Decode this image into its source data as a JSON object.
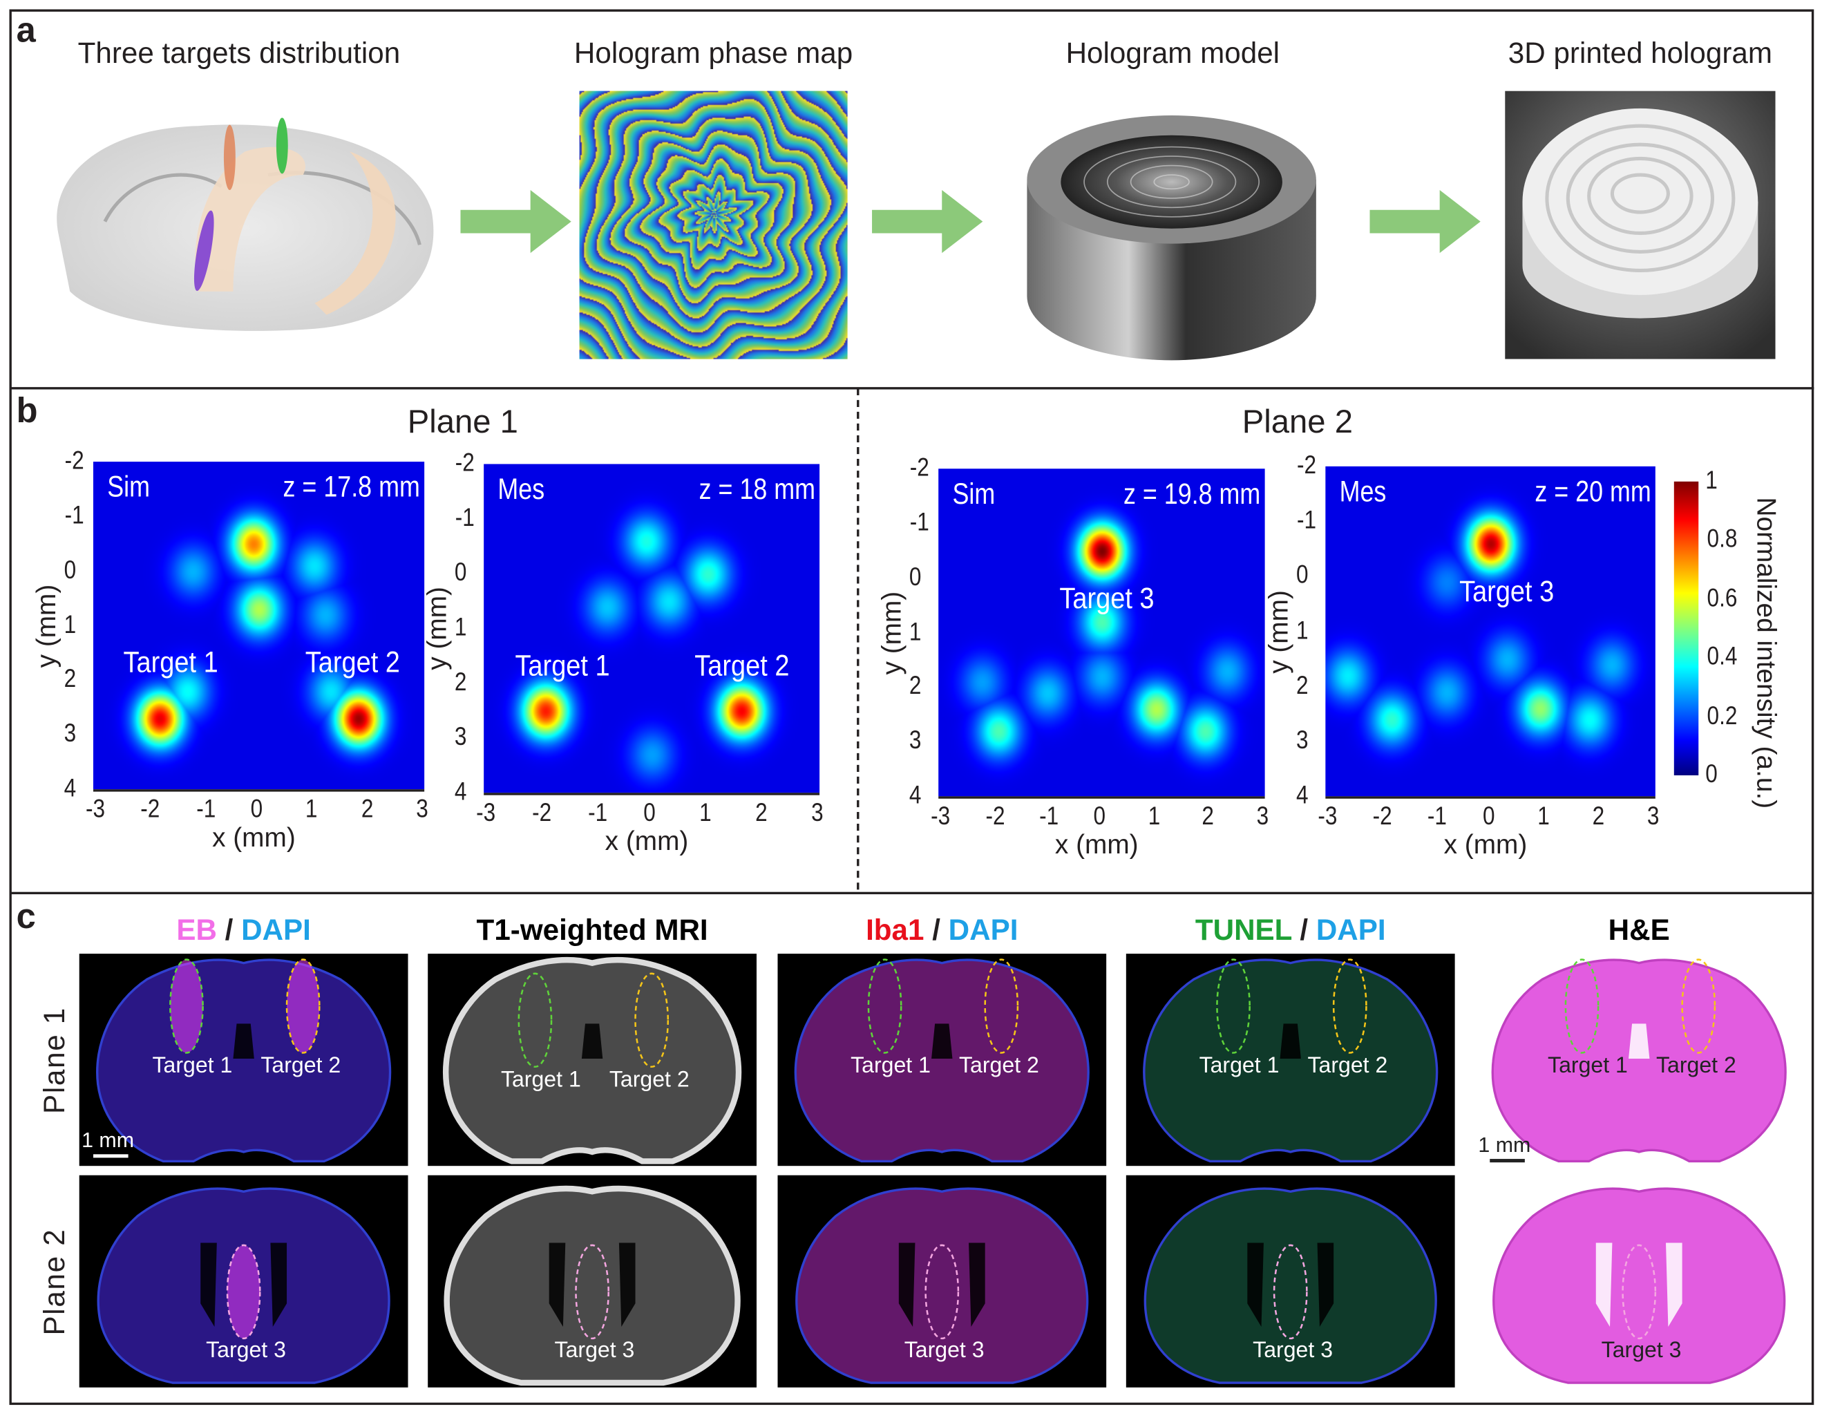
{
  "panel_a": {
    "label": "a",
    "titles": [
      "Three targets distribution",
      "Hologram phase map",
      "Hologram model",
      "3D printed hologram"
    ],
    "arrow_color": "#8cc97a"
  },
  "panel_b": {
    "label": "b",
    "plane1_title": "Plane 1",
    "plane2_title": "Plane 2",
    "colorbar": {
      "label": "Normalized intensity (a.u.)",
      "ticks": [
        "0",
        "0.2",
        "0.4",
        "0.6",
        "0.8",
        "1"
      ],
      "colormap": "jet",
      "range": [
        0,
        1
      ]
    }
  },
  "chart_data": [
    {
      "type": "heatmap",
      "mode": "Sim",
      "z_label": "z = 17.8 mm",
      "xlabel": "x (mm)",
      "ylabel": "y (mm)",
      "xlim": [
        -3,
        3
      ],
      "ylim": [
        -2,
        4
      ],
      "y_inverted": true,
      "xticks": [
        "-3",
        "-2",
        "-1",
        "0",
        "1",
        "2",
        "3"
      ],
      "yticks": [
        "-2",
        "-1",
        "0",
        "1",
        "2",
        "3",
        "4"
      ],
      "annotations": [
        {
          "text": "Target 1",
          "x": -1.5,
          "y": 1.7
        },
        {
          "text": "Target 2",
          "x": 1.8,
          "y": 1.7
        }
      ],
      "peaks": [
        {
          "x": -0.1,
          "y": -0.5,
          "v": 0.75
        },
        {
          "x": 0.0,
          "y": 0.7,
          "v": 0.55
        },
        {
          "x": -1.8,
          "y": 2.7,
          "v": 0.9
        },
        {
          "x": 1.8,
          "y": 2.7,
          "v": 0.97
        },
        {
          "x": -1.3,
          "y": 2.2,
          "v": 0.38
        },
        {
          "x": 1.3,
          "y": 2.2,
          "v": 0.35
        },
        {
          "x": -1.2,
          "y": 0.0,
          "v": 0.3
        },
        {
          "x": 1.0,
          "y": -0.1,
          "v": 0.35
        },
        {
          "x": 1.2,
          "y": 0.8,
          "v": 0.3
        }
      ]
    },
    {
      "type": "heatmap",
      "mode": "Mes",
      "z_label": "z = 18 mm",
      "xlabel": "x (mm)",
      "ylabel": "y (mm)",
      "xlim": [
        -3,
        3
      ],
      "ylim": [
        -2,
        4
      ],
      "y_inverted": true,
      "xticks": [
        "-3",
        "-2",
        "-1",
        "0",
        "1",
        "2",
        "3"
      ],
      "yticks": [
        "-2",
        "-1",
        "0",
        "1",
        "2",
        "3",
        "4"
      ],
      "annotations": [
        {
          "text": "Target 1",
          "x": -1.5,
          "y": 1.7
        },
        {
          "text": "Target 2",
          "x": 1.7,
          "y": 1.7
        }
      ],
      "peaks": [
        {
          "x": -1.9,
          "y": 2.5,
          "v": 0.85
        },
        {
          "x": 1.6,
          "y": 2.5,
          "v": 0.88
        },
        {
          "x": -0.1,
          "y": -0.6,
          "v": 0.4
        },
        {
          "x": 1.0,
          "y": 0.0,
          "v": 0.42
        },
        {
          "x": 0.3,
          "y": 0.5,
          "v": 0.35
        },
        {
          "x": -0.8,
          "y": 0.6,
          "v": 0.32
        },
        {
          "x": 0.0,
          "y": 3.3,
          "v": 0.28
        }
      ]
    },
    {
      "type": "heatmap",
      "mode": "Sim",
      "z_label": "z = 19.8 mm",
      "xlabel": "x (mm)",
      "ylabel": "y (mm)",
      "xlim": [
        -3,
        3
      ],
      "ylim": [
        -2,
        4
      ],
      "y_inverted": true,
      "xticks": [
        "-3",
        "-2",
        "-1",
        "0",
        "1",
        "2",
        "3"
      ],
      "yticks": [
        "-2",
        "-1",
        "0",
        "1",
        "2",
        "3",
        "4"
      ],
      "annotations": [
        {
          "text": "Target 3",
          "x": 0.2,
          "y": 0.4
        }
      ],
      "peaks": [
        {
          "x": 0.0,
          "y": -0.5,
          "v": 1.0
        },
        {
          "x": 0.0,
          "y": 0.8,
          "v": 0.45
        },
        {
          "x": -1.9,
          "y": 2.8,
          "v": 0.45
        },
        {
          "x": 1.9,
          "y": 2.8,
          "v": 0.45
        },
        {
          "x": 1.0,
          "y": 2.4,
          "v": 0.55
        },
        {
          "x": -1.0,
          "y": 2.1,
          "v": 0.32
        },
        {
          "x": 0.0,
          "y": 1.8,
          "v": 0.3
        },
        {
          "x": 2.3,
          "y": 1.7,
          "v": 0.3
        },
        {
          "x": -2.2,
          "y": 1.9,
          "v": 0.28
        }
      ]
    },
    {
      "type": "heatmap",
      "mode": "Mes",
      "z_label": "z = 20 mm",
      "xlabel": "x (mm)",
      "ylabel": "y (mm)",
      "xlim": [
        -3,
        3
      ],
      "ylim": [
        -2,
        4
      ],
      "y_inverted": true,
      "xticks": [
        "-3",
        "-2",
        "-1",
        "0",
        "1",
        "2",
        "3"
      ],
      "yticks": [
        "-2",
        "-1",
        "0",
        "1",
        "2",
        "3",
        "4"
      ],
      "annotations": [
        {
          "text": "Target 3",
          "x": 0.4,
          "y": 0.3
        }
      ],
      "peaks": [
        {
          "x": 0.0,
          "y": -0.6,
          "v": 0.95
        },
        {
          "x": -1.8,
          "y": 2.6,
          "v": 0.42
        },
        {
          "x": 0.9,
          "y": 2.4,
          "v": 0.52
        },
        {
          "x": 1.8,
          "y": 2.6,
          "v": 0.38
        },
        {
          "x": -2.6,
          "y": 1.8,
          "v": 0.36
        },
        {
          "x": -0.8,
          "y": 2.1,
          "v": 0.3
        },
        {
          "x": 0.3,
          "y": 1.5,
          "v": 0.3
        },
        {
          "x": 2.2,
          "y": 1.6,
          "v": 0.3
        },
        {
          "x": -0.8,
          "y": 0.1,
          "v": 0.25
        }
      ]
    }
  ],
  "panel_c": {
    "label": "c",
    "rows": [
      "Plane 1",
      "Plane 2"
    ],
    "columns": [
      {
        "parts": [
          {
            "text": "EB",
            "color": "#f26ee8"
          },
          {
            "text": " / ",
            "color": "#231f20"
          },
          {
            "text": "DAPI",
            "color": "#1ea0e6"
          }
        ],
        "fill": "#2a1785",
        "bg": "#000000"
      },
      {
        "parts": [
          {
            "text": "T1-weighted MRI",
            "color": "#000000"
          }
        ],
        "fill": "#4a4a4a",
        "bg": "#000000"
      },
      {
        "parts": [
          {
            "text": "Iba1",
            "color": "#e8101c"
          },
          {
            "text": " / ",
            "color": "#231f20"
          },
          {
            "text": "DAPI",
            "color": "#1ea0e6"
          }
        ],
        "fill": "#63186a",
        "bg": "#000000"
      },
      {
        "parts": [
          {
            "text": "TUNEL",
            "color": "#1ea035"
          },
          {
            "text": " / ",
            "color": "#231f20"
          },
          {
            "text": "DAPI",
            "color": "#1ea0e6"
          }
        ],
        "fill": "#0f3a2a",
        "bg": "#000000"
      },
      {
        "parts": [
          {
            "text": "H&E",
            "color": "#000000"
          }
        ],
        "fill": "#e25ce0",
        "bg": "#ffffff"
      }
    ],
    "target_labels": {
      "t1": "Target 1",
      "t2": "Target 2",
      "t3": "Target 3"
    },
    "scale_bar": "1 mm",
    "ellipse_colors": {
      "t1": "#5fd33a",
      "t2": "#f5c518",
      "t3": "#f4a6e0"
    }
  }
}
